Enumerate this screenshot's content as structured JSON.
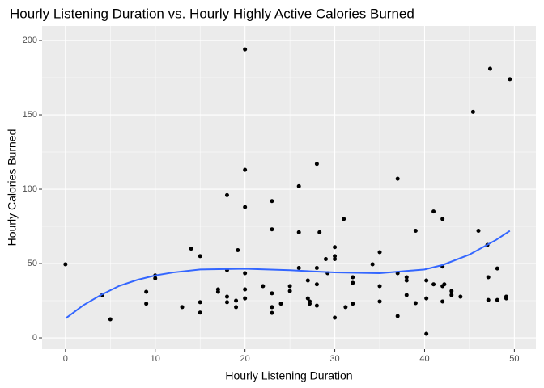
{
  "chart_data": {
    "type": "scatter",
    "title": "Hourly Listening Duration vs. Hourly Highly Active Calories Burned",
    "x_label": "Hourly Listening Duration",
    "y_label": "Hourly Calories Burned",
    "xlim": [
      -2.6,
      52.4
    ],
    "ylim": [
      -7.6,
      209.8
    ],
    "xticks": [
      0,
      10,
      20,
      30,
      40,
      50
    ],
    "yticks": [
      0,
      50,
      100,
      150,
      200
    ],
    "x_minor_grid": [
      5,
      15,
      25,
      35,
      45
    ],
    "y_minor_grid": [
      25,
      75,
      125,
      175
    ],
    "grid": true,
    "color": "#000000",
    "x": [
      0,
      4.1,
      5,
      9,
      9,
      10,
      10,
      13,
      14,
      15,
      15,
      15,
      17,
      17,
      18,
      18,
      18,
      18,
      19,
      19,
      19.2,
      20,
      20,
      20,
      20,
      20,
      20,
      22,
      23,
      23,
      23,
      23,
      23,
      24,
      25,
      25,
      26,
      26,
      26,
      27,
      27,
      27.2,
      27.2,
      28,
      28.3,
      28,
      28,
      28,
      29,
      29.2,
      30,
      30,
      30,
      30,
      31,
      31.2,
      32,
      32,
      32,
      34.2,
      35,
      35,
      35,
      37,
      37,
      37,
      38,
      38,
      38,
      39,
      39,
      40.2,
      40.2,
      40.2,
      41,
      41,
      42,
      42,
      42.2,
      42,
      42,
      43,
      43,
      44,
      45.4,
      46,
      47.3,
      47,
      47.1,
      47.1,
      48.1,
      48.1,
      49.1,
      49.1,
      49.5
    ],
    "values": [
      49.5,
      28.8,
      12.5,
      31,
      23,
      42,
      40,
      20.7,
      60,
      55,
      24,
      17,
      32.6,
      31,
      96,
      45.6,
      27.7,
      24,
      20.7,
      25,
      59,
      194,
      113,
      88,
      43.5,
      32.6,
      26.6,
      34.8,
      92,
      73,
      30,
      20.7,
      16.8,
      23,
      34.8,
      31.5,
      102,
      71,
      47,
      38.6,
      26.6,
      24.5,
      23,
      117,
      71,
      36,
      47,
      21.7,
      53,
      43.5,
      61,
      55,
      53,
      13.6,
      80,
      20.7,
      40.8,
      37,
      23,
      49.5,
      57.6,
      34.8,
      24.5,
      107,
      43.5,
      14.7,
      40.8,
      38.6,
      28.8,
      72,
      23.4,
      38.6,
      26.6,
      2.7,
      85,
      36,
      80,
      48,
      36,
      34.8,
      24.5,
      31.5,
      28.8,
      27.7,
      152,
      72,
      181,
      62.5,
      40.8,
      25.5,
      46.7,
      25.5,
      26.6,
      27.7,
      174
    ],
    "trend": {
      "color": "#3366ff",
      "x": [
        0,
        2,
        4,
        6,
        8,
        10,
        12,
        15,
        20,
        25,
        30,
        35,
        40,
        42,
        45,
        48,
        49.5
      ],
      "values": [
        13,
        22,
        29,
        35,
        39,
        42,
        44,
        46,
        46.5,
        45.5,
        44,
        43.5,
        46,
        49,
        56,
        66,
        72
      ]
    }
  }
}
